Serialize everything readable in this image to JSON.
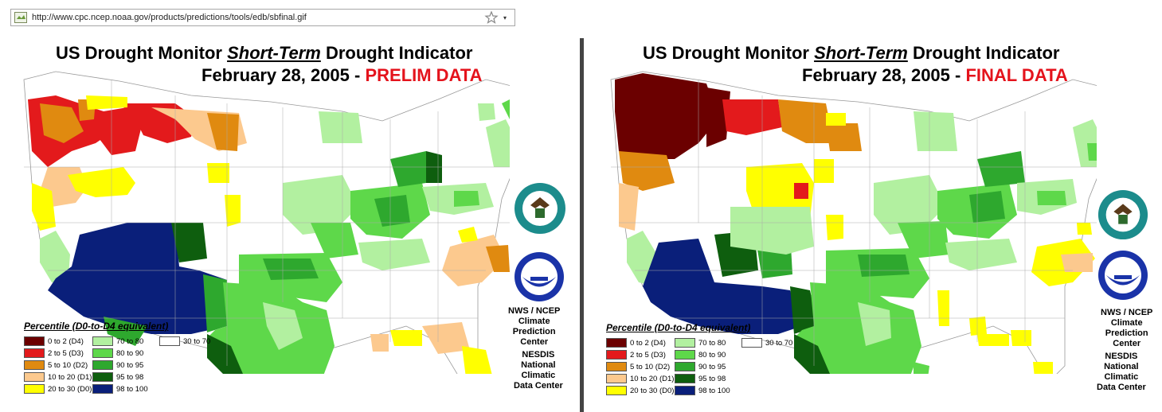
{
  "browser": {
    "url": "http://www.cpc.ncep.noaa.gov/products/predictions/tools/edb/sbfinal.gif"
  },
  "panels": [
    {
      "title_prefix": "US Drought Monitor ",
      "title_emph": "Short-Term",
      "title_suffix": " Drought Indicator",
      "date": "February 28, 2005 - ",
      "tag": "PRELIM DATA"
    },
    {
      "title_prefix": "US Drought Monitor ",
      "title_emph": "Short-Term",
      "title_suffix": " Drought Indicator",
      "date": "February 28, 2005 - ",
      "tag": "FINAL DATA"
    }
  ],
  "legend": {
    "heading": "Percentile  (D0-to-D4 equivalent)",
    "items": [
      {
        "label": "0 to 2  (D4)",
        "color": "#6b0000"
      },
      {
        "label": "2 to 5  (D3)",
        "color": "#e31a1c"
      },
      {
        "label": "5 to 10  (D2)",
        "color": "#e08a10"
      },
      {
        "label": "10 to 20  (D1)",
        "color": "#fcc98e"
      },
      {
        "label": "20 to 30  (D0)",
        "color": "#ffff00"
      },
      {
        "label": "70 to 80",
        "color": "#b2f0a0"
      },
      {
        "label": "80 to 90",
        "color": "#5ed84a"
      },
      {
        "label": "90 to 95",
        "color": "#2ea82e"
      },
      {
        "label": "95 to 98",
        "color": "#0e5e0e"
      },
      {
        "label": "98 to 100",
        "color": "#0a1f7a"
      },
      {
        "label": "30 to 70",
        "color": "#ffffff"
      }
    ]
  },
  "credits": {
    "cpc_l1": "NWS / NCEP",
    "cpc_l2": "Climate",
    "cpc_l3": "Prediction",
    "cpc_l4": "Center",
    "ncdc_l1": "NESDIS",
    "ncdc_l2": "National",
    "ncdc_l3": "Climatic",
    "ncdc_l4": "Data Center"
  },
  "icons": {
    "commerce_seal": "commerce-seal-icon",
    "noaa_logo": "noaa-logo-icon"
  }
}
